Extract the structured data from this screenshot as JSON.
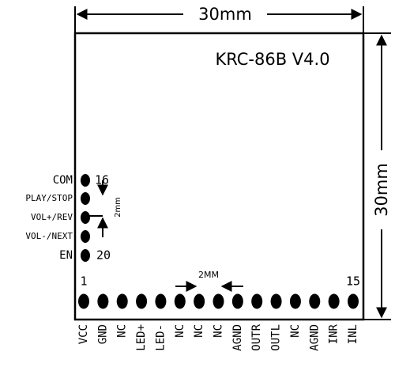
{
  "header": {
    "width_label": "30mm",
    "height_label": "30mm",
    "title": "KRC-86B V4.0"
  },
  "side_pins": {
    "labels": [
      "COM",
      "PLAY/STOP",
      "VOL+/REV",
      "VOL-/NEXT",
      "EN"
    ],
    "first": "16",
    "last": "20",
    "pitch": "2mm"
  },
  "bottom_pins": {
    "labels": [
      "VCC",
      "GND",
      "NC",
      "LED+",
      "LED-",
      "NC",
      "NC",
      "NC",
      "AGND",
      "OUTR",
      "OUTL",
      "NC",
      "AGND",
      "INR",
      "INL"
    ],
    "first": "1",
    "last": "15",
    "pitch": "2MM"
  }
}
